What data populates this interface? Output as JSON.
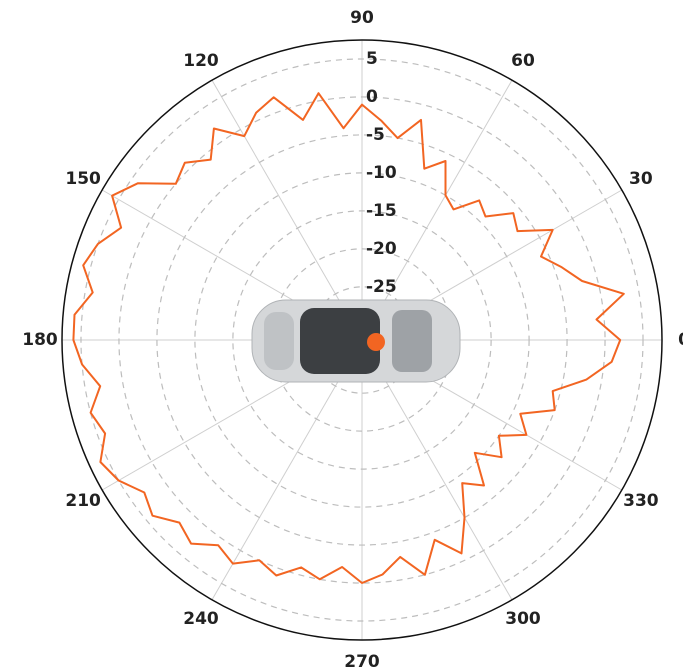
{
  "chart_data": {
    "type": "polar",
    "theta": [
      0,
      5,
      10,
      15,
      20,
      25,
      30,
      35,
      40,
      45,
      50,
      55,
      60,
      65,
      70,
      75,
      80,
      85,
      90,
      95,
      100,
      105,
      110,
      115,
      120,
      125,
      130,
      135,
      140,
      145,
      150,
      155,
      160,
      165,
      170,
      175,
      180,
      185,
      190,
      195,
      200,
      205,
      210,
      215,
      220,
      225,
      230,
      235,
      240,
      245,
      250,
      255,
      260,
      265,
      270,
      275,
      280,
      285,
      290,
      295,
      300,
      305,
      310,
      315,
      320,
      325,
      330,
      335,
      340,
      345,
      350,
      355
    ],
    "series": [
      {
        "color": "#f26522",
        "values": [
          2,
          -1,
          3,
          -2,
          -4,
          -6,
          -3,
          -7,
          -6,
          -9,
          -8,
          -11,
          -10,
          -6,
          -8,
          -2,
          -5,
          -3,
          -1,
          -4,
          1,
          -2,
          2,
          1,
          -1,
          2,
          -1,
          1,
          0,
          4,
          6,
          3,
          5,
          6,
          4,
          6,
          6,
          5,
          3,
          5,
          4,
          6,
          5,
          3,
          4,
          2,
          3,
          1,
          2,
          0,
          1,
          -1,
          0,
          -2,
          0,
          -1,
          -3,
          0,
          -4,
          -1,
          -5,
          -9,
          -7,
          -11,
          -8,
          -10,
          -7,
          -9,
          -5,
          -6,
          -2,
          1
        ]
      }
    ],
    "rlim": [
      -32,
      7.5
    ],
    "rticks": [
      5,
      0,
      -5,
      -10,
      -15,
      -20,
      -25
    ],
    "thetaticks": [
      0,
      30,
      60,
      90,
      120,
      150,
      180,
      210,
      240,
      270,
      300,
      330
    ]
  }
}
